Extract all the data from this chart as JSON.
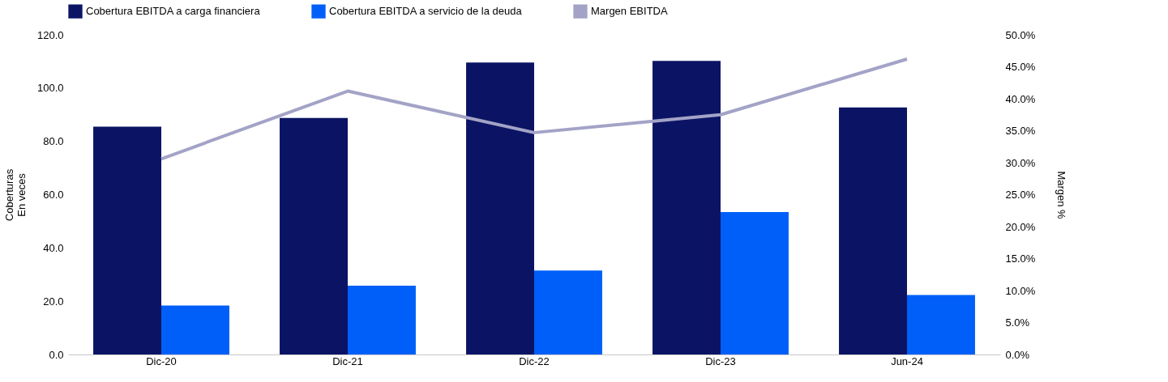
{
  "chart_data": {
    "type": "bar",
    "categories": [
      "Dic-20",
      "Dic-21",
      "Dic-22",
      "Dic-23",
      "Jun-24"
    ],
    "ylabel": "Coberturas\nEn veces",
    "y2label": "Margen %",
    "legend": "top",
    "grid": false,
    "ylim": [
      0,
      120
    ],
    "yticks": [
      {
        "value": 0,
        "label": "0.0"
      },
      {
        "value": 20,
        "label": "20.0"
      },
      {
        "value": 40,
        "label": "40.0"
      },
      {
        "value": 60,
        "label": "60.0"
      },
      {
        "value": 80,
        "label": "80.0"
      },
      {
        "value": 100,
        "label": "100.0"
      },
      {
        "value": 120,
        "label": "120.0"
      }
    ],
    "y2lim": [
      0,
      50
    ],
    "y2ticks": [
      {
        "value": 0,
        "label": "0.0%"
      },
      {
        "value": 5,
        "label": "5.0%"
      },
      {
        "value": 10,
        "label": "10.0%"
      },
      {
        "value": 15,
        "label": "15.0%"
      },
      {
        "value": 20,
        "label": "20.0%"
      },
      {
        "value": 25,
        "label": "25.0%"
      },
      {
        "value": 30,
        "label": "30.0%"
      },
      {
        "value": 35,
        "label": "35.0%"
      },
      {
        "value": 40,
        "label": "40.0%"
      },
      {
        "value": 45,
        "label": "45.0%"
      },
      {
        "value": 50,
        "label": "50.0%"
      }
    ],
    "series": [
      {
        "name": "Cobertura EBITDA a carga financiera",
        "color": "#0b1464",
        "values": [
          85.5,
          88.8,
          109.6,
          110.2,
          92.7
        ]
      },
      {
        "name": "Cobertura EBITDA a servicio de la deuda",
        "color": "#005ff9",
        "values": [
          18.4,
          25.8,
          31.5,
          53.5,
          22.3
        ]
      },
      {
        "name": "Margen EBITDA",
        "type": "line",
        "axis": "y2",
        "color": "#a3a3c7",
        "values": [
          30.6,
          41.2,
          34.7,
          37.5,
          46.2
        ]
      }
    ]
  }
}
